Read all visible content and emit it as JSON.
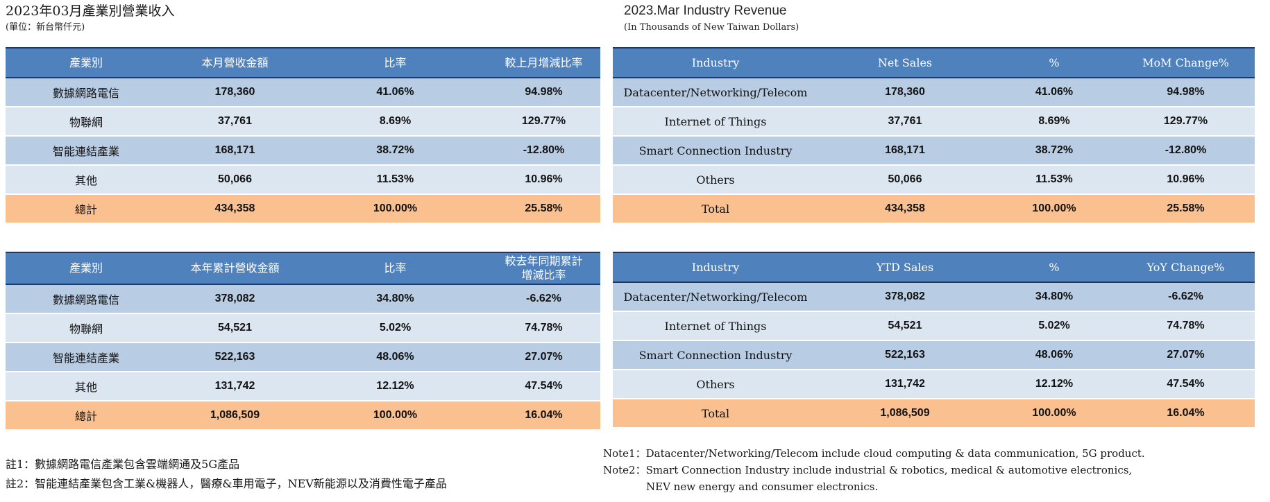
{
  "colors": {
    "header_blue": "#4F81BD",
    "band_dark": "#B8CCE4",
    "band_light": "#DCE6F1",
    "total_orange": "#FAC08F",
    "header_border": "#1F3864"
  },
  "left": {
    "title": "2023年03月產業別營業收入",
    "subtitle": "(單位：新台幣仟元)",
    "monthly": {
      "headers": [
        "產業別",
        "本月營收金額",
        "比率",
        "較上月增減比率"
      ],
      "rows": [
        [
          "數據網路電信",
          "178,360",
          "41.06%",
          "94.98%"
        ],
        [
          "物聯網",
          "37,761",
          "8.69%",
          "129.77%"
        ],
        [
          "智能連結產業",
          "168,171",
          "38.72%",
          "-12.80%"
        ],
        [
          "其他",
          "50,066",
          "11.53%",
          "10.96%"
        ]
      ],
      "total": [
        "總計",
        "434,358",
        "100.00%",
        "25.58%"
      ]
    },
    "ytd": {
      "headers": [
        "產業別",
        "本年累計營收金額",
        "比率",
        "較去年同期累計\n增減比率"
      ],
      "rows": [
        [
          "數據網路電信",
          "378,082",
          "34.80%",
          "-6.62%"
        ],
        [
          "物聯網",
          "54,521",
          "5.02%",
          "74.78%"
        ],
        [
          "智能連結產業",
          "522,163",
          "48.06%",
          "27.07%"
        ],
        [
          "其他",
          "131,742",
          "12.12%",
          "47.54%"
        ]
      ],
      "total": [
        "總計",
        "1,086,509",
        "100.00%",
        "16.04%"
      ]
    },
    "notes": {
      "note1": "註1：數據網路電信產業包含雲端網通及5G產品",
      "note2": "註2：智能連結產業包含工業&機器人，醫療&車用電子，NEV新能源以及消費性電子產品"
    }
  },
  "right": {
    "title": "2023.Mar Industry Revenue",
    "subtitle": "(In Thousands of New Taiwan Dollars)",
    "monthly": {
      "headers": [
        "Industry",
        "Net Sales",
        "%",
        "MoM Change%"
      ],
      "rows": [
        [
          "Datacenter/Networking/Telecom",
          "178,360",
          "41.06%",
          "94.98%"
        ],
        [
          "Internet of Things",
          "37,761",
          "8.69%",
          "129.77%"
        ],
        [
          "Smart Connection Industry",
          "168,171",
          "38.72%",
          "-12.80%"
        ],
        [
          "Others",
          "50,066",
          "11.53%",
          "10.96%"
        ]
      ],
      "total": [
        "Total",
        "434,358",
        "100.00%",
        "25.58%"
      ]
    },
    "ytd": {
      "headers": [
        "Industry",
        "YTD Sales",
        "%",
        "YoY Change%"
      ],
      "rows": [
        [
          "Datacenter/Networking/Telecom",
          "378,082",
          "34.80%",
          "-6.62%"
        ],
        [
          "Internet of Things",
          "54,521",
          "5.02%",
          "74.78%"
        ],
        [
          "Smart Connection Industry",
          "522,163",
          "48.06%",
          "27.07%"
        ],
        [
          "Others",
          "131,742",
          "12.12%",
          "47.54%"
        ]
      ],
      "total": [
        "Total",
        "1,086,509",
        "100.00%",
        "16.04%"
      ]
    },
    "notes": {
      "note1": "Note1：Datacenter/Networking/Telecom include cloud computing & data communication, 5G product.",
      "note2": "Note2：Smart Connection Industry include industrial & robotics, medical & automotive electronics,",
      "note2_cont": "NEV new energy and consumer electronics."
    }
  }
}
